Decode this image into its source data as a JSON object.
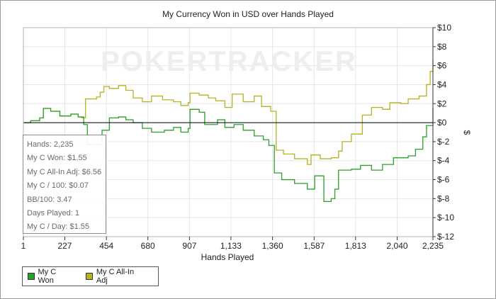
{
  "chart_data": {
    "type": "line",
    "title": "My Currency Won in USD over Hands Played",
    "watermark": "POKERTRACKER",
    "xlabel": "Hands Played",
    "ylabel": "$",
    "xlim": [
      1,
      2235
    ],
    "ylim": [
      -12,
      10
    ],
    "x_ticks": [
      1,
      227,
      454,
      680,
      907,
      1133,
      1360,
      1587,
      1813,
      2040,
      2235
    ],
    "x_tick_labels": [
      "1",
      "227",
      "454",
      "680",
      "907",
      "1,133",
      "1,360",
      "1,587",
      "1,813",
      "2,040",
      "2,235"
    ],
    "y_ticks": [
      10,
      8,
      6,
      4,
      2,
      0,
      -2,
      -4,
      -6,
      -8,
      -10,
      -12
    ],
    "y_tick_labels": [
      "$10",
      "$8",
      "$6",
      "$4",
      "$2",
      "$0",
      "$-2",
      "$-4",
      "$-6",
      "$-8",
      "$-10",
      "$-12"
    ],
    "grid": true,
    "legend_position": "bottom-left",
    "series": [
      {
        "name": "My C Won",
        "color": "#2ca02c",
        "points": [
          [
            1,
            0
          ],
          [
            40,
            0.2
          ],
          [
            90,
            0.5
          ],
          [
            110,
            1.5
          ],
          [
            150,
            1.2
          ],
          [
            200,
            0.7
          ],
          [
            260,
            0.9
          ],
          [
            300,
            0.6
          ],
          [
            330,
            -0.2
          ],
          [
            350,
            -2.3
          ],
          [
            420,
            -2.3
          ],
          [
            430,
            -0.8
          ],
          [
            470,
            0.5
          ],
          [
            520,
            0.6
          ],
          [
            560,
            0.3
          ],
          [
            600,
            0
          ],
          [
            650,
            -0.6
          ],
          [
            700,
            -1
          ],
          [
            770,
            -0.8
          ],
          [
            820,
            -0.5
          ],
          [
            860,
            -1
          ],
          [
            900,
            -0.6
          ],
          [
            910,
            1.4
          ],
          [
            960,
            1.1
          ],
          [
            990,
            -0.2
          ],
          [
            1060,
            0.3
          ],
          [
            1100,
            -0.5
          ],
          [
            1150,
            -0.2
          ],
          [
            1200,
            -0.8
          ],
          [
            1260,
            -1.4
          ],
          [
            1310,
            -1.8
          ],
          [
            1340,
            -2.4
          ],
          [
            1370,
            -5.3
          ],
          [
            1410,
            -6
          ],
          [
            1480,
            -6.4
          ],
          [
            1550,
            -7
          ],
          [
            1590,
            -5.6
          ],
          [
            1640,
            -8.3
          ],
          [
            1680,
            -8
          ],
          [
            1700,
            -7
          ],
          [
            1720,
            -5
          ],
          [
            1790,
            -4.9
          ],
          [
            1840,
            -4.5
          ],
          [
            1900,
            -5
          ],
          [
            1960,
            -4.4
          ],
          [
            2020,
            -3.7
          ],
          [
            2100,
            -3.5
          ],
          [
            2140,
            -2.8
          ],
          [
            2180,
            -1.5
          ],
          [
            2200,
            -0.3
          ],
          [
            2220,
            -0.3
          ],
          [
            2235,
            1.55
          ]
        ]
      },
      {
        "name": "My C All-In Adj",
        "color": "#b5b320",
        "points": [
          [
            1,
            0
          ],
          [
            40,
            0.2
          ],
          [
            90,
            0.5
          ],
          [
            110,
            1.5
          ],
          [
            150,
            1.2
          ],
          [
            200,
            0.7
          ],
          [
            260,
            0.9
          ],
          [
            300,
            0.6
          ],
          [
            320,
            0.5
          ],
          [
            340,
            2.5
          ],
          [
            400,
            2.7
          ],
          [
            420,
            3.2
          ],
          [
            440,
            3.8
          ],
          [
            470,
            3.6
          ],
          [
            520,
            3.9
          ],
          [
            560,
            3.4
          ],
          [
            600,
            2.6
          ],
          [
            650,
            2.2
          ],
          [
            700,
            2.8
          ],
          [
            760,
            2.4
          ],
          [
            820,
            2.2
          ],
          [
            860,
            1.8
          ],
          [
            900,
            2.1
          ],
          [
            910,
            3.1
          ],
          [
            960,
            2.9
          ],
          [
            1010,
            2.6
          ],
          [
            1050,
            2.3
          ],
          [
            1100,
            1.6
          ],
          [
            1140,
            3
          ],
          [
            1200,
            2.2
          ],
          [
            1260,
            2.8
          ],
          [
            1300,
            1.7
          ],
          [
            1350,
            1.2
          ],
          [
            1380,
            -2.9
          ],
          [
            1420,
            -3.3
          ],
          [
            1480,
            -3.8
          ],
          [
            1550,
            -4.4
          ],
          [
            1570,
            -3.4
          ],
          [
            1620,
            -3.8
          ],
          [
            1680,
            -3.7
          ],
          [
            1720,
            -3
          ],
          [
            1740,
            -2
          ],
          [
            1790,
            -1.2
          ],
          [
            1850,
            0.8
          ],
          [
            1900,
            1.6
          ],
          [
            1960,
            1.4
          ],
          [
            2000,
            2.1
          ],
          [
            2060,
            2
          ],
          [
            2100,
            2.5
          ],
          [
            2160,
            2.8
          ],
          [
            2200,
            4
          ],
          [
            2220,
            5.4
          ],
          [
            2235,
            6.56
          ]
        ]
      }
    ],
    "stats": [
      "Hands: 2,235",
      "My C Won: $1.55",
      "My C All-In Adj: $6.56",
      "My C / 100: $0.07",
      "BB/100: 3.47",
      "Days Played: 1",
      "My C / Day: $1.55"
    ]
  }
}
